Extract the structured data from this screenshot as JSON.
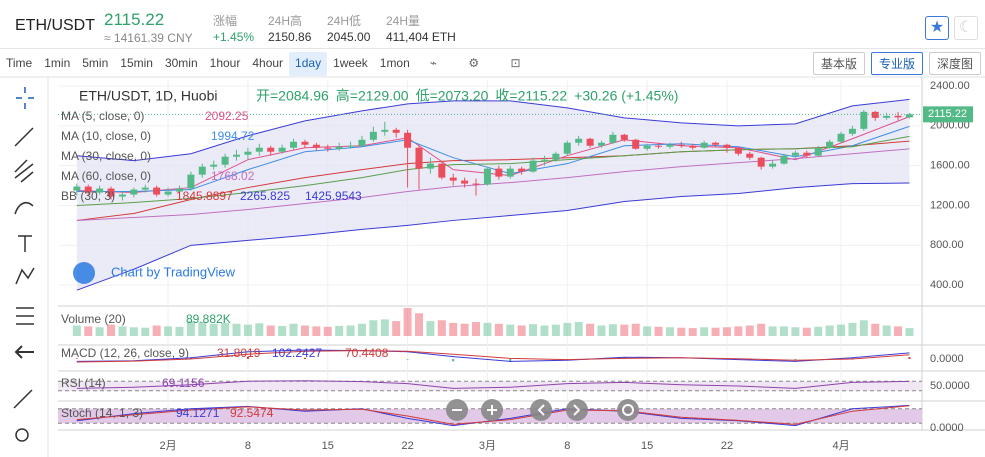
{
  "header": {
    "symbol": "ETH/USDT",
    "price": "2115.22",
    "cny": "≈ 14161.39 CNY",
    "stats": [
      {
        "label": "涨幅",
        "value": "+1.45%"
      },
      {
        "label": "24H高",
        "value": "2150.86"
      },
      {
        "label": "24H低",
        "value": "2045.00"
      },
      {
        "label": "24H量",
        "value": "411,404 ETH"
      }
    ]
  },
  "toolbar": {
    "intervals": [
      "Time",
      "1min",
      "5min",
      "15min",
      "30min",
      "1hour",
      "4hour",
      "1day",
      "1week",
      "1mon"
    ],
    "views": [
      "基本版",
      "专业版",
      "深度图"
    ]
  },
  "chart": {
    "type": "candlestick",
    "title": "ETH/USDT, 1D, Huobi",
    "ohlc_labels": [
      "开=2084.96",
      "高=2129.00",
      "低=2073.20",
      "收=2115.22",
      "+30.26 (+1.45%)"
    ],
    "watermark": "Chart by TradingView",
    "up_color": "#53b987",
    "down_color": "#eb4d5c",
    "candles": [
      [
        1350,
        1420,
        1300,
        1390
      ],
      [
        1390,
        1410,
        1300,
        1330
      ],
      [
        1330,
        1400,
        1310,
        1370
      ],
      [
        1370,
        1390,
        1260,
        1290
      ],
      [
        1290,
        1340,
        1250,
        1310
      ],
      [
        1310,
        1380,
        1280,
        1360
      ],
      [
        1360,
        1410,
        1330,
        1380
      ],
      [
        1380,
        1400,
        1290,
        1310
      ],
      [
        1310,
        1380,
        1290,
        1340
      ],
      [
        1340,
        1400,
        1320,
        1370
      ],
      [
        1370,
        1540,
        1350,
        1510
      ],
      [
        1510,
        1620,
        1480,
        1590
      ],
      [
        1590,
        1650,
        1560,
        1610
      ],
      [
        1610,
        1720,
        1580,
        1690
      ],
      [
        1690,
        1760,
        1650,
        1710
      ],
      [
        1710,
        1780,
        1660,
        1740
      ],
      [
        1740,
        1820,
        1700,
        1780
      ],
      [
        1780,
        1800,
        1700,
        1740
      ],
      [
        1740,
        1810,
        1720,
        1780
      ],
      [
        1780,
        1870,
        1760,
        1840
      ],
      [
        1840,
        1860,
        1780,
        1810
      ],
      [
        1810,
        1830,
        1750,
        1780
      ],
      [
        1780,
        1810,
        1740,
        1770
      ],
      [
        1770,
        1830,
        1750,
        1790
      ],
      [
        1790,
        1840,
        1770,
        1800
      ],
      [
        1800,
        1900,
        1790,
        1860
      ],
      [
        1860,
        1990,
        1840,
        1940
      ],
      [
        1940,
        2040,
        1900,
        1960
      ],
      [
        1960,
        1980,
        1880,
        1930
      ],
      [
        1930,
        1960,
        1380,
        1780
      ],
      [
        1780,
        1800,
        1360,
        1570
      ],
      [
        1570,
        1680,
        1520,
        1620
      ],
      [
        1620,
        1650,
        1460,
        1480
      ],
      [
        1480,
        1520,
        1400,
        1450
      ],
      [
        1450,
        1480,
        1380,
        1420
      ],
      [
        1420,
        1470,
        1300,
        1410
      ],
      [
        1410,
        1590,
        1400,
        1570
      ],
      [
        1570,
        1600,
        1460,
        1490
      ],
      [
        1490,
        1600,
        1470,
        1570
      ],
      [
        1570,
        1590,
        1510,
        1540
      ],
      [
        1540,
        1680,
        1530,
        1650
      ],
      [
        1650,
        1700,
        1600,
        1660
      ],
      [
        1660,
        1740,
        1640,
        1720
      ],
      [
        1720,
        1850,
        1700,
        1830
      ],
      [
        1830,
        1900,
        1800,
        1870
      ],
      [
        1870,
        1880,
        1780,
        1800
      ],
      [
        1800,
        1850,
        1780,
        1830
      ],
      [
        1830,
        1940,
        1820,
        1910
      ],
      [
        1910,
        1920,
        1840,
        1860
      ],
      [
        1860,
        1870,
        1760,
        1770
      ],
      [
        1770,
        1820,
        1750,
        1800
      ],
      [
        1800,
        1830,
        1770,
        1790
      ],
      [
        1790,
        1830,
        1770,
        1810
      ],
      [
        1810,
        1840,
        1780,
        1800
      ],
      [
        1800,
        1820,
        1760,
        1780
      ],
      [
        1780,
        1850,
        1770,
        1830
      ],
      [
        1830,
        1840,
        1790,
        1810
      ],
      [
        1810,
        1820,
        1730,
        1780
      ],
      [
        1780,
        1790,
        1700,
        1720
      ],
      [
        1720,
        1740,
        1660,
        1680
      ],
      [
        1680,
        1690,
        1560,
        1590
      ],
      [
        1590,
        1650,
        1570,
        1620
      ],
      [
        1620,
        1720,
        1610,
        1700
      ],
      [
        1700,
        1750,
        1680,
        1730
      ],
      [
        1730,
        1750,
        1680,
        1700
      ],
      [
        1700,
        1800,
        1690,
        1780
      ],
      [
        1780,
        1860,
        1770,
        1840
      ],
      [
        1840,
        1940,
        1830,
        1920
      ],
      [
        1920,
        2000,
        1900,
        1970
      ],
      [
        1970,
        2160,
        1950,
        2140
      ],
      [
        2140,
        2150,
        2050,
        2080
      ],
      [
        2080,
        2130,
        2060,
        2100
      ],
      [
        2100,
        2140,
        2060,
        2085
      ],
      [
        2084.96,
        2129,
        2073.2,
        2115.22
      ]
    ],
    "xlim": [
      -1.65,
      74.1
    ],
    "xticks": [
      {
        "value": 8,
        "label": "2月"
      },
      {
        "value": 15,
        "label": "8"
      },
      {
        "value": 22,
        "label": "15"
      },
      {
        "value": 29,
        "label": "22"
      },
      {
        "value": 36,
        "label": "3月"
      },
      {
        "value": 43,
        "label": "8"
      },
      {
        "value": 50,
        "label": "15"
      },
      {
        "value": 57,
        "label": "22"
      },
      {
        "value": 67,
        "label": "4月"
      }
    ],
    "ylim": [
      201,
      2460
    ],
    "yticks": [
      {
        "value": 2400,
        "label": "2400.00"
      },
      {
        "value": 2000,
        "label": "2000.00"
      },
      {
        "value": 1600,
        "label": "1600.00"
      },
      {
        "value": 1200,
        "label": "1200.00"
      },
      {
        "value": 800,
        "label": "800.00"
      },
      {
        "value": 400,
        "label": "400.00"
      }
    ],
    "sample_days": [
      0,
      5,
      10,
      15,
      20,
      25,
      29,
      33,
      38,
      43,
      48,
      53,
      58,
      63,
      68,
      73
    ],
    "ma": [
      {
        "name": "MA (5, close, 0)",
        "color": "#e0508a",
        "values": [
          1350,
          1330,
          1380,
          1660,
          1780,
          1800,
          1880,
          1560,
          1500,
          1700,
          1860,
          1800,
          1780,
          1660,
          1870,
          2092.25
        ]
      },
      {
        "name": "MA (10, close, 0)",
        "color": "#3d8ee6",
        "values": [
          1340,
          1340,
          1360,
          1560,
          1740,
          1790,
          1860,
          1680,
          1520,
          1620,
          1800,
          1820,
          1790,
          1690,
          1800,
          1994.72
        ]
      },
      {
        "name": "MA (30, close, 0)",
        "color": "#5a9e4b",
        "values": [
          1200,
          1230,
          1270,
          1330,
          1400,
          1480,
          1560,
          1610,
          1620,
          1660,
          1700,
          1740,
          1760,
          1770,
          1790,
          1894.06
        ]
      },
      {
        "name": "MA (60, close, 0)",
        "color": "#c06fc0",
        "values": [
          1050,
          1080,
          1110,
          1160,
          1220,
          1280,
          1340,
          1390,
          1430,
          1480,
          1540,
          1590,
          1630,
          1670,
          1720,
          1768.02
        ]
      }
    ],
    "bb": {
      "name": "BB (30, 3)",
      "colors": [
        "#d33a3a",
        "#3b3bd6",
        "#3b3bd6"
      ],
      "fill": "#e3e3f4",
      "basis": [
        1050,
        1120,
        1260,
        1380,
        1480,
        1560,
        1620,
        1650,
        1660,
        1680,
        1700,
        1740,
        1760,
        1770,
        1800,
        1845.8897
      ],
      "upper": [
        1700,
        1650,
        1720,
        1900,
        2050,
        2150,
        2220,
        2250,
        2250,
        2180,
        2080,
        2030,
        2000,
        2020,
        2200,
        2265.825
      ],
      "lower": [
        350,
        560,
        800,
        850,
        900,
        960,
        1000,
        1050,
        1100,
        1150,
        1240,
        1290,
        1320,
        1380,
        1420,
        1425.9543
      ]
    },
    "volume": {
      "name": "Volume (20)",
      "value_label": "89.882K",
      "values": [
        120,
        110,
        100,
        130,
        110,
        100,
        95,
        120,
        110,
        105,
        170,
        160,
        140,
        150,
        140,
        130,
        145,
        120,
        115,
        140,
        120,
        110,
        105,
        115,
        120,
        140,
        180,
        190,
        170,
        320,
        260,
        170,
        180,
        150,
        140,
        160,
        150,
        140,
        130,
        120,
        135,
        120,
        130,
        150,
        160,
        140,
        120,
        135,
        130,
        140,
        110,
        105,
        100,
        95,
        90,
        100,
        95,
        100,
        110,
        120,
        140,
        110,
        110,
        100,
        95,
        105,
        120,
        130,
        150,
        180,
        140,
        120,
        110,
        89.882
      ]
    },
    "macd": {
      "name": "MACD (12, 26, close, 9)",
      "histogram": [
        10,
        5,
        20,
        40,
        20,
        0,
        -10,
        -40,
        -50,
        -10,
        20,
        0,
        -15,
        -20,
        20,
        31.8019
      ],
      "macd": [
        -40,
        -30,
        20,
        120,
        150,
        140,
        120,
        40,
        -40,
        -20,
        30,
        20,
        -10,
        -40,
        20,
        102.2427
      ],
      "signal": [
        -50,
        -35,
        0,
        80,
        130,
        140,
        130,
        80,
        10,
        -10,
        10,
        20,
        5,
        -20,
        0,
        70.4408
      ],
      "yticks": [
        {
          "value": 0,
          "label": "0.0000"
        }
      ]
    },
    "rsi": {
      "name": "RSI (14)",
      "values": [
        40,
        45,
        55,
        70,
        72,
        68,
        60,
        40,
        45,
        60,
        65,
        55,
        50,
        40,
        65,
        69.1156
      ],
      "ylim": [
        0,
        100
      ],
      "bands": [
        70,
        30
      ],
      "yticks": [
        {
          "value": 50,
          "label": "50.0000"
        }
      ]
    },
    "stoch": {
      "name": "Stoch (14, 1, 3)",
      "k": [
        30,
        60,
        80,
        90,
        70,
        80,
        40,
        10,
        40,
        80,
        70,
        40,
        30,
        10,
        80,
        94.1271
      ],
      "d": [
        35,
        55,
        75,
        88,
        75,
        78,
        50,
        15,
        35,
        75,
        72,
        45,
        32,
        15,
        70,
        92.5474
      ],
      "ylim": [
        0,
        100
      ],
      "bands": [
        80,
        20
      ],
      "yticks": [
        {
          "value": 0,
          "label": "0.0000"
        }
      ]
    }
  }
}
